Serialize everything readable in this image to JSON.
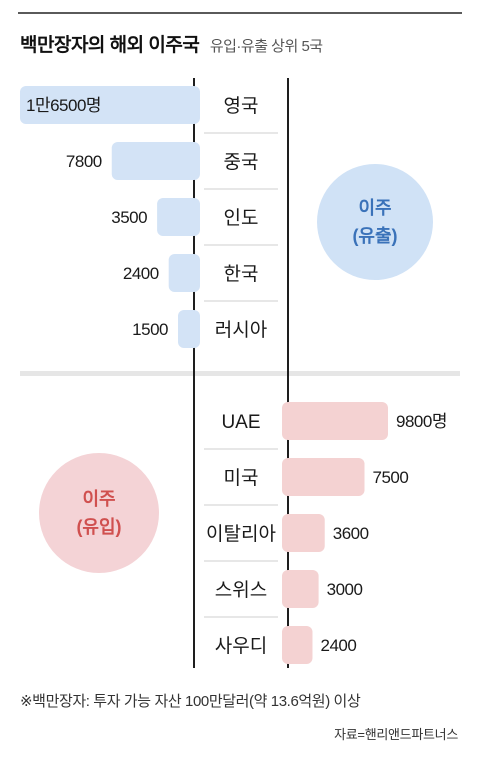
{
  "title": {
    "main": "백만장자의 해외 이주국",
    "sub": "유입·유출 상위 5국"
  },
  "colors": {
    "outflow_bar": "#d3e3f6",
    "outflow_circle": "#d0e2f6",
    "outflow_text": "#3a72b9",
    "inflow_bar": "#f4d2d2",
    "inflow_circle": "#f4d3d6",
    "inflow_text": "#d0504f",
    "divider": "#1e1e1e",
    "separator": "#e6e6e6"
  },
  "chart_data": [
    {
      "type": "bar",
      "categories": [
        "영국",
        "중국",
        "인도",
        "한국",
        "러시아"
      ],
      "values": [
        16500,
        7800,
        3500,
        2400,
        1500
      ],
      "value_labels": [
        "1만6500명",
        "7800",
        "3500",
        "2400",
        "1500"
      ],
      "badge": {
        "line1": "이주",
        "line2": "(유출)"
      }
    },
    {
      "type": "bar",
      "categories": [
        "UAE",
        "미국",
        "이탈리아",
        "스위스",
        "사우디"
      ],
      "values": [
        9800,
        7500,
        3600,
        3000,
        2400
      ],
      "value_labels": [
        "9800명",
        "7500",
        "3600",
        "3000",
        "2400"
      ],
      "badge": {
        "line1": "이주",
        "line2": "(유입)"
      }
    }
  ],
  "footer": {
    "note": "※백만장자: 투자 가능 자산 100만달러(약 13.6억원) 이상",
    "source": "자료=핸리앤드파트너스"
  }
}
